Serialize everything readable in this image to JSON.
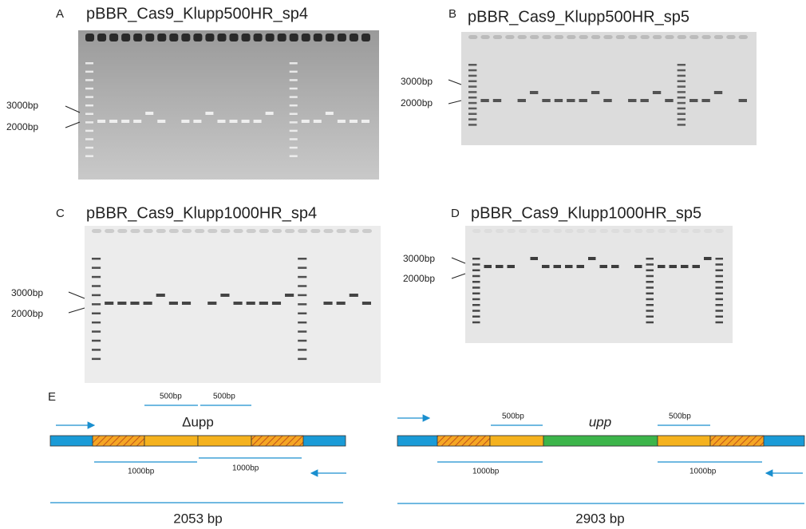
{
  "panels": [
    {
      "letter": "A",
      "title": "pBBR_Cas9_Klupp500HR_sp4",
      "markers": [
        "3000bp",
        "2000bp"
      ]
    },
    {
      "letter": "B",
      "title": "pBBR_Cas9_Klupp500HR_sp5",
      "markers": [
        "3000bp",
        "2000bp"
      ]
    },
    {
      "letter": "C",
      "title": "pBBR_Cas9_Klupp1000HR_sp4",
      "markers": [
        "3000bp",
        "2000bp"
      ]
    },
    {
      "letter": "D",
      "title": "pBBR_Cas9_Klupp1000HR_sp5",
      "markers": [
        "3000bp",
        "2000bp"
      ]
    }
  ],
  "diagram": {
    "letter": "E",
    "left": {
      "arm_labels": [
        "500bp",
        "500bp"
      ],
      "gene": "Δupp",
      "long_labels": [
        "1000bp",
        "1000bp"
      ],
      "size": "2053 bp"
    },
    "right": {
      "arm_labels": [
        "500bp",
        "500bp"
      ],
      "gene": "upp",
      "long_labels": [
        "1000bp",
        "1000bp"
      ],
      "size": "2903 bp"
    }
  }
}
